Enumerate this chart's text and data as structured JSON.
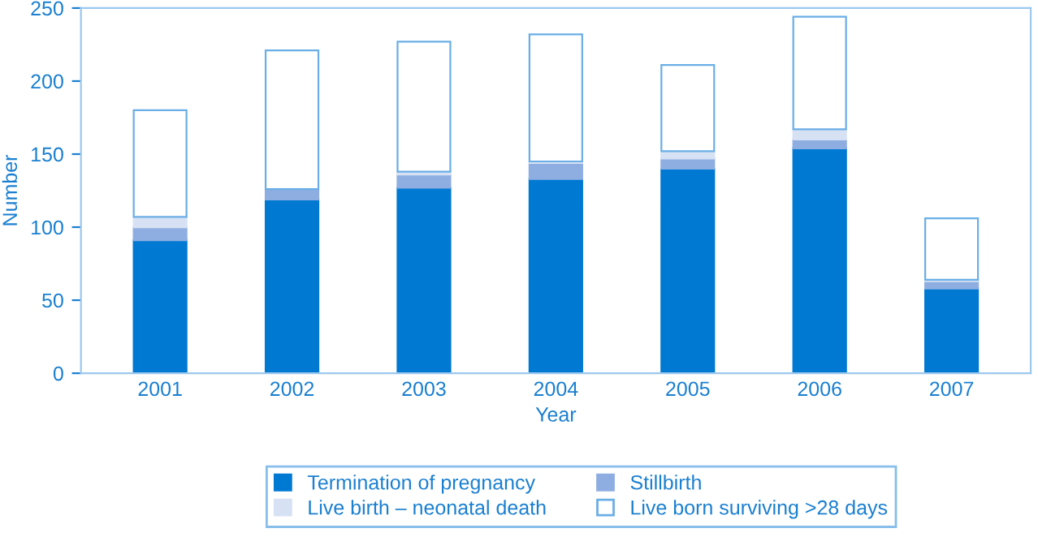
{
  "chart_data": {
    "type": "bar",
    "stacked": true,
    "xlabel": "Year",
    "ylabel": "Number",
    "categories": [
      "2001",
      "2002",
      "2003",
      "2004",
      "2005",
      "2006",
      "2007"
    ],
    "series": [
      {
        "name": "Termination of pregnancy",
        "color": "#0079d2",
        "values": [
          91,
          119,
          127,
          133,
          140,
          154,
          58
        ]
      },
      {
        "name": "Stillbirth",
        "color": "#8eaee2",
        "values": [
          9,
          7,
          9,
          11,
          7,
          6,
          5
        ]
      },
      {
        "name": "Live birth – neonatal death",
        "color": "#d6e2f4",
        "values": [
          7,
          null,
          2,
          1,
          5,
          7,
          1
        ]
      },
      {
        "name": "Live born surviving >28 days",
        "color": "#ffffff",
        "values": [
          73,
          95,
          89,
          87,
          59,
          77,
          42
        ]
      }
    ],
    "ylim": [
      0,
      250
    ],
    "yticks": [
      0,
      50,
      100,
      150,
      200,
      250
    ],
    "grid": false,
    "legend": "bottom"
  }
}
